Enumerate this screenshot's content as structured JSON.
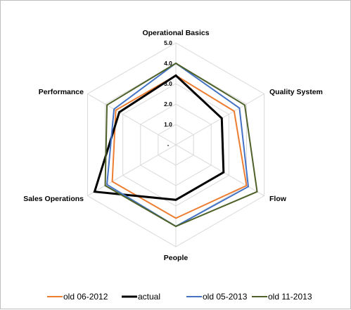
{
  "chart_data": {
    "type": "radar",
    "categories": [
      "Operational Basics",
      "Quality System",
      "Flow",
      "People",
      "Sales Operations",
      "Performance"
    ],
    "rlim": [
      0,
      5
    ],
    "ticks": [
      {
        "value": 0,
        "label": "-"
      },
      {
        "value": 1,
        "label": "1.0"
      },
      {
        "value": 2,
        "label": "2.0"
      },
      {
        "value": 3,
        "label": "3.0"
      },
      {
        "value": 4,
        "label": "4.0"
      },
      {
        "value": 5,
        "label": "5.0"
      }
    ],
    "grid": true,
    "legend_position": "bottom",
    "series": [
      {
        "name": "old 06-2012",
        "color": "#ed7d31",
        "values": [
          3.4,
          3.3,
          4.0,
          3.6,
          3.6,
          3.4
        ]
      },
      {
        "name": "actual",
        "color": "#000000",
        "values": [
          3.4,
          2.6,
          2.7,
          2.7,
          4.6,
          3.2
        ]
      },
      {
        "name": "old 05-2013",
        "color": "#4472c4",
        "values": [
          4.0,
          3.6,
          4.1,
          4.0,
          3.9,
          3.5
        ]
      },
      {
        "name": "old 11-2013",
        "color": "#4e6128",
        "values": [
          4.0,
          3.9,
          4.6,
          4.0,
          4.0,
          3.9
        ]
      }
    ]
  }
}
